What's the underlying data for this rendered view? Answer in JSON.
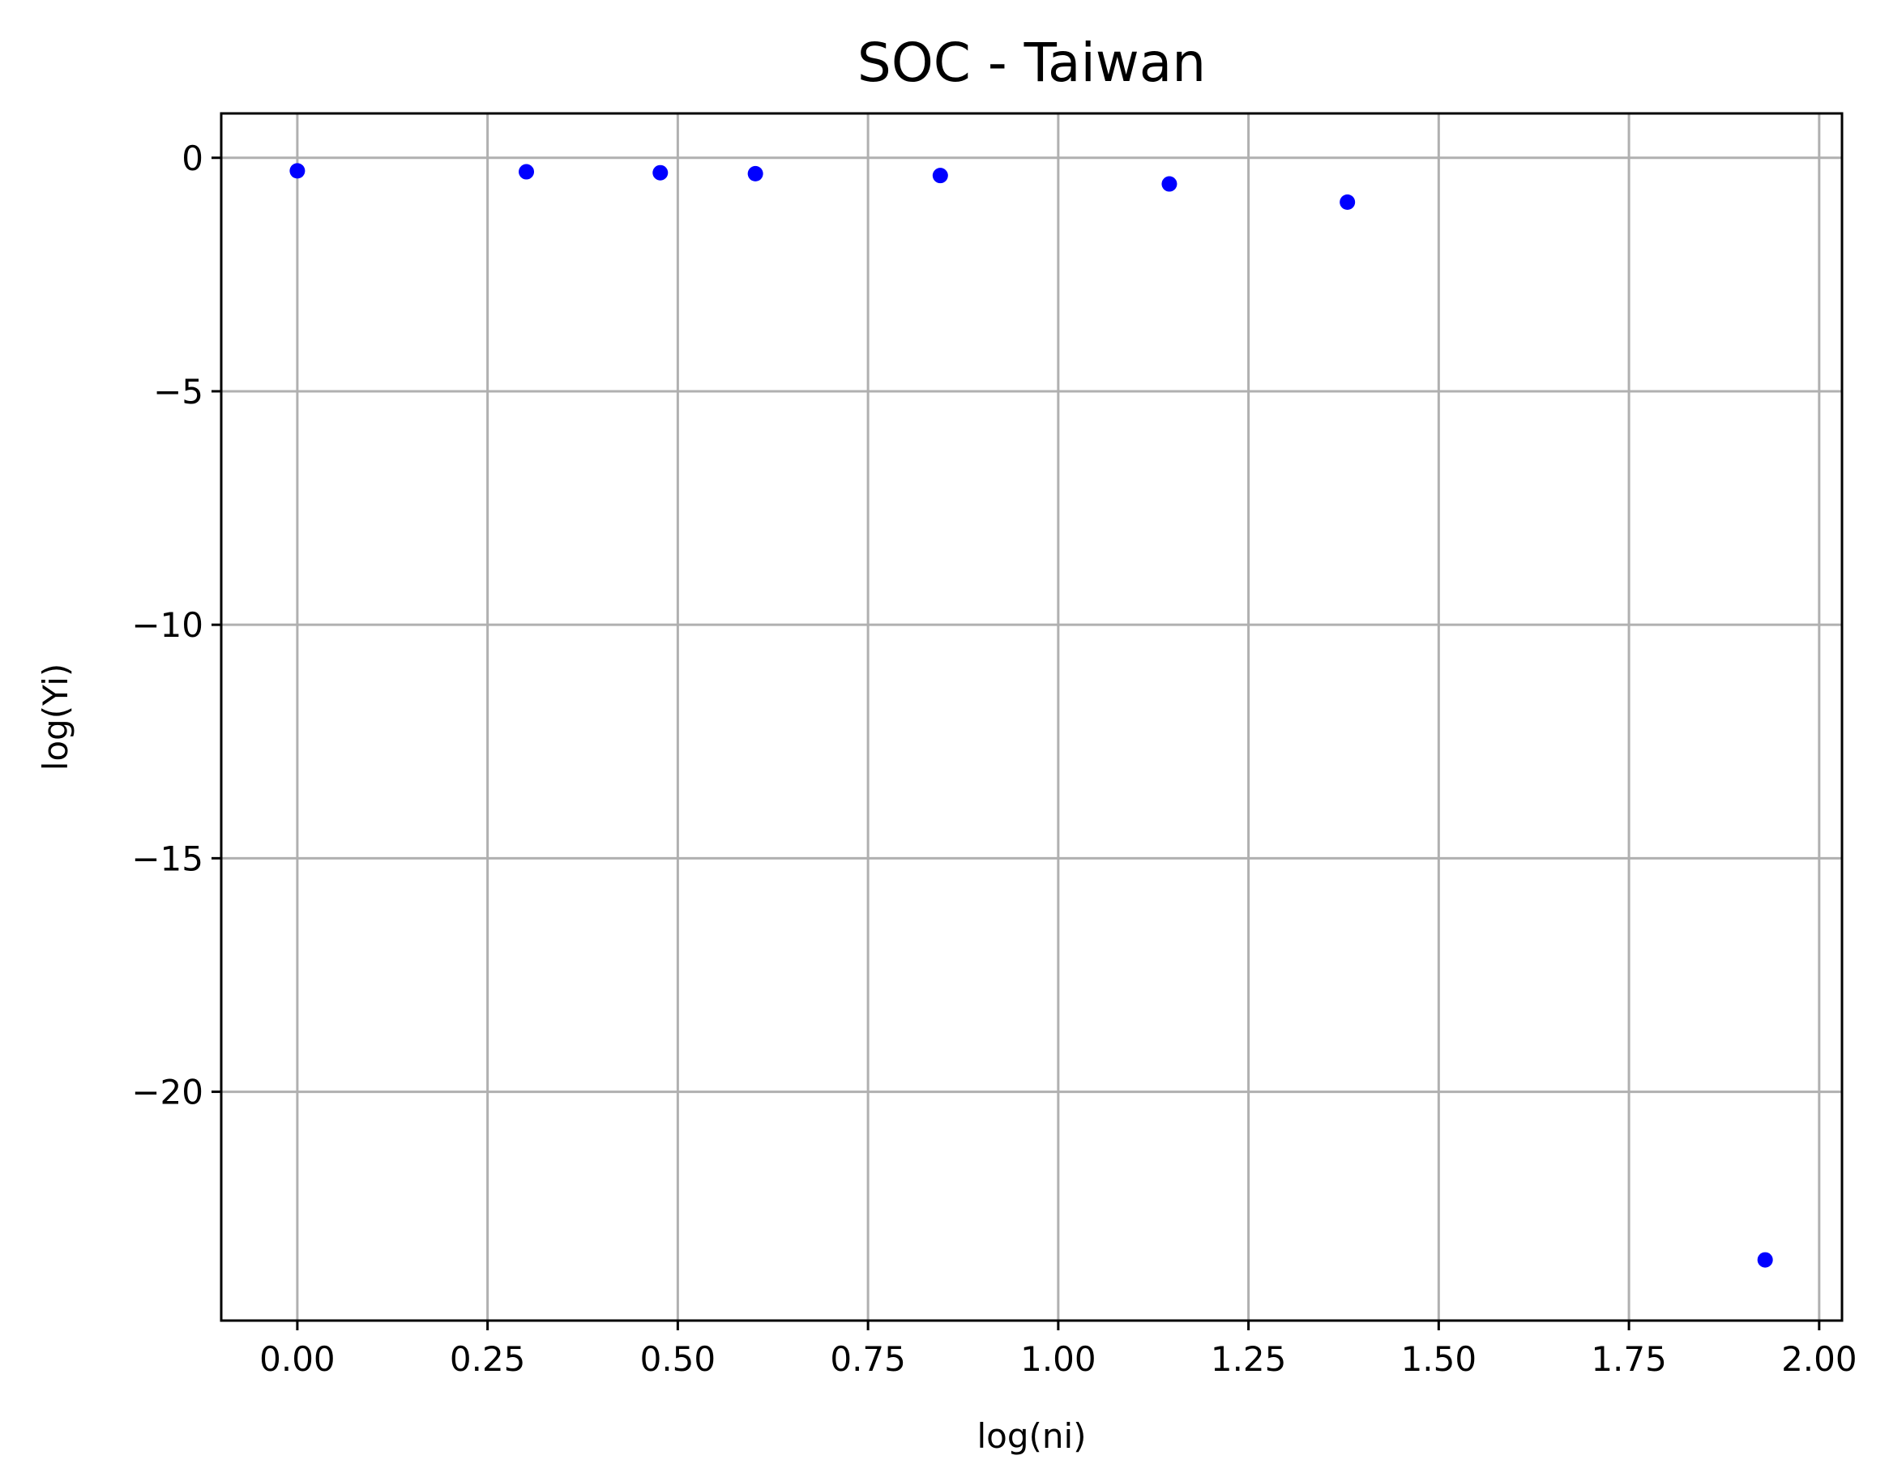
{
  "chart_data": {
    "type": "scatter",
    "title": "SOC - Taiwan",
    "xlabel": "log(ni)",
    "ylabel": "log(Yi)",
    "xlim": [
      -0.1,
      2.03
    ],
    "ylim": [
      -24.9,
      0.95
    ],
    "xticks": [
      0.0,
      0.25,
      0.5,
      0.75,
      1.0,
      1.25,
      1.5,
      1.75,
      2.0
    ],
    "xtick_labels": [
      "0.00",
      "0.25",
      "0.50",
      "0.75",
      "1.00",
      "1.25",
      "1.50",
      "1.75",
      "2.00"
    ],
    "yticks": [
      0,
      -5,
      -10,
      -15,
      -20
    ],
    "ytick_labels": [
      "0",
      "−5",
      "−10",
      "−15",
      "−20"
    ],
    "grid": true,
    "series": [
      {
        "color": "#0000ff",
        "x": [
          0.0,
          0.301,
          0.477,
          0.602,
          0.845,
          1.146,
          1.38,
          1.929
        ],
        "y": [
          -0.28,
          -0.3,
          -0.32,
          -0.34,
          -0.38,
          -0.56,
          -0.95,
          -23.6
        ]
      }
    ]
  }
}
